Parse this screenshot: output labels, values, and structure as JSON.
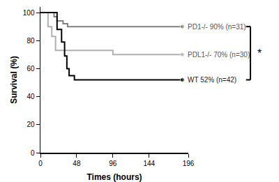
{
  "chart_data": {
    "type": "line",
    "line_style": "step",
    "marker": "circle",
    "x_label": "Times (hours)",
    "y_label": "Survival (%)",
    "xlim": [
      0,
      196
    ],
    "xticks": [
      0,
      48,
      96,
      144,
      196
    ],
    "ylim": [
      0,
      104
    ],
    "yticks": [
      0,
      20,
      40,
      60,
      80,
      100
    ],
    "grid": false,
    "annotations": [
      "*"
    ],
    "series": [
      {
        "name": "PD1-/- 90% (n=31)",
        "color": "#808080",
        "x": [
          0,
          18,
          22,
          30,
          36,
          188
        ],
        "values": [
          100,
          97,
          94,
          92,
          90,
          90
        ]
      },
      {
        "name": "PDL1-/- 70% (n=30)",
        "color": "#b0b0b0",
        "x": [
          0,
          10,
          15,
          20,
          96,
          188
        ],
        "values": [
          100,
          90,
          83,
          73,
          70,
          70
        ]
      },
      {
        "name": "WT 52% (n=42)",
        "color": "#000000",
        "x": [
          0,
          22,
          28,
          32,
          35,
          38,
          45,
          188
        ],
        "values": [
          100,
          88,
          79,
          69,
          60,
          55,
          52,
          52
        ]
      }
    ]
  }
}
